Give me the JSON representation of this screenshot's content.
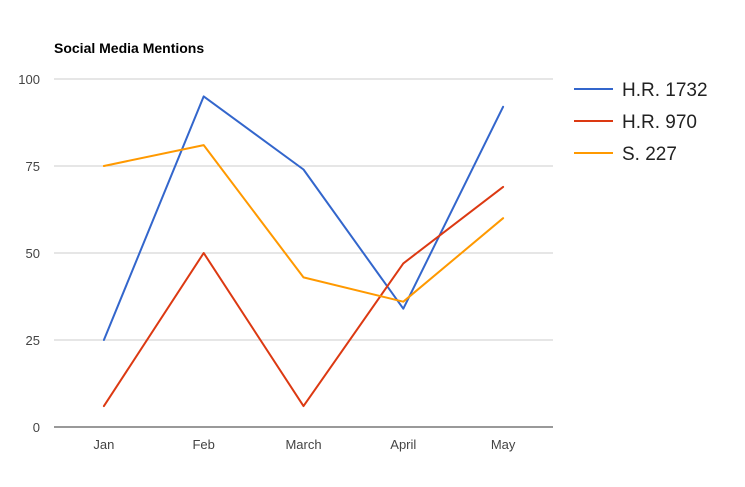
{
  "chart_data": {
    "type": "line",
    "title": "Social Media Mentions",
    "xlabel": "",
    "ylabel": "",
    "categories": [
      "Jan",
      "Feb",
      "March",
      "April",
      "May"
    ],
    "ylim": [
      0,
      100
    ],
    "yticks": [
      0,
      25,
      50,
      75,
      100
    ],
    "grid": true,
    "legend_position": "right",
    "series": [
      {
        "name": "H.R. 1732",
        "color": "#3366cc",
        "values": [
          25,
          95,
          74,
          34,
          92
        ]
      },
      {
        "name": "H.R. 970",
        "color": "#dc3912",
        "values": [
          6,
          50,
          6,
          47,
          69
        ]
      },
      {
        "name": "S. 227",
        "color": "#ff9900",
        "values": [
          75,
          81,
          43,
          36,
          60
        ]
      }
    ]
  }
}
